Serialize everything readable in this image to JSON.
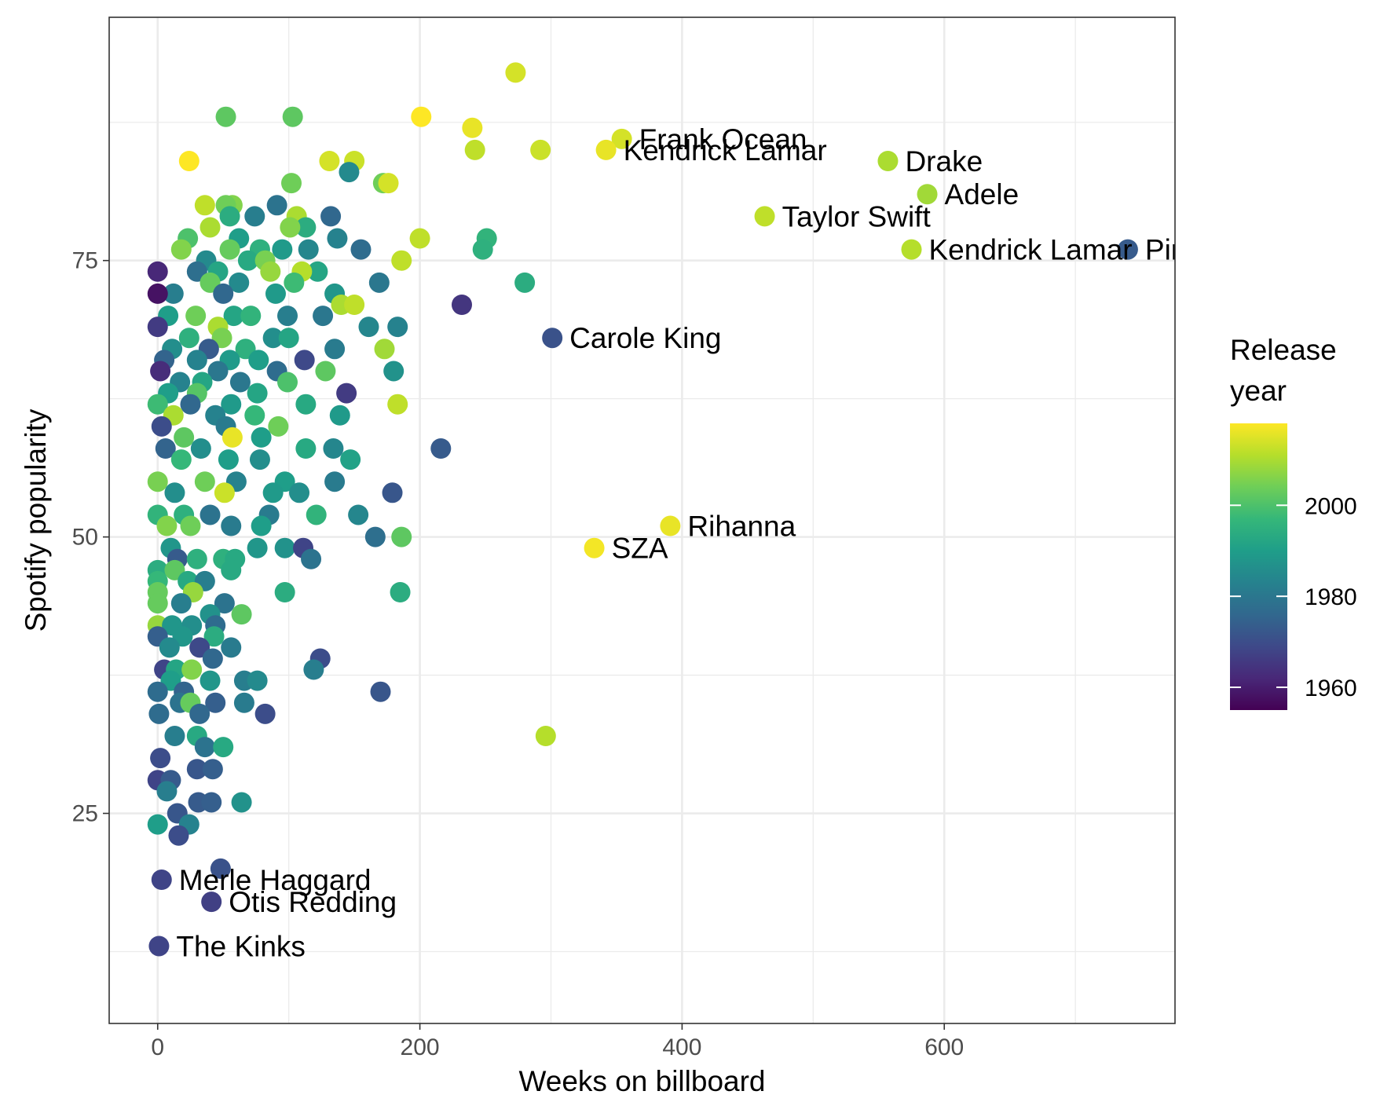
{
  "chart_data": {
    "type": "scatter",
    "title": "",
    "xlabel": "Weeks on billboard",
    "ylabel": "Spotify popularity",
    "xlim": [
      -37,
      776
    ],
    "ylim": [
      6,
      97
    ],
    "x_ticks": [
      0,
      200,
      400,
      600
    ],
    "y_ticks": [
      25,
      50,
      75
    ],
    "grid": true,
    "color_scale": {
      "name": "viridis",
      "title": "Release year",
      "title_lines": [
        "Release",
        "year"
      ],
      "range": [
        1955,
        2018
      ],
      "ticks": [
        1960,
        1980,
        2000
      ],
      "colors": [
        "#440154",
        "#482878",
        "#3e4989",
        "#31688e",
        "#26828e",
        "#1f9e89",
        "#35b779",
        "#6ece58",
        "#b5de2b",
        "#fde725"
      ]
    },
    "legend_position": "right",
    "labeled_points": [
      {
        "label": "Frank Ocean",
        "x": 354,
        "y": 86,
        "year": 2014
      },
      {
        "label": "Kendrick Lamar",
        "x": 342,
        "y": 85,
        "year": 2016
      },
      {
        "label": "Drake",
        "x": 557,
        "y": 84,
        "year": 2010
      },
      {
        "label": "Adele",
        "x": 587,
        "y": 81,
        "year": 2009
      },
      {
        "label": "Taylor Swift",
        "x": 463,
        "y": 79,
        "year": 2012
      },
      {
        "label": "Kendrick Lamar",
        "x": 575,
        "y": 76,
        "year": 2011
      },
      {
        "label": "Pink Floyd",
        "x": 740,
        "y": 76,
        "year": 1973
      },
      {
        "label": "Carole King",
        "x": 301,
        "y": 68,
        "year": 1971
      },
      {
        "label": "Rihanna",
        "x": 391,
        "y": 51,
        "year": 2016
      },
      {
        "label": "SZA",
        "x": 333,
        "y": 49,
        "year": 2017
      },
      {
        "label": "Merle Haggard",
        "x": 3,
        "y": 19,
        "year": 1968
      },
      {
        "label": "Otis Redding",
        "x": 41,
        "y": 17,
        "year": 1967
      },
      {
        "label": "The Kinks",
        "x": 1,
        "y": 13,
        "year": 1968
      }
    ],
    "points": [
      [
        273,
        92,
        2014
      ],
      [
        201,
        88,
        2018
      ],
      [
        52,
        88,
        2002
      ],
      [
        103,
        88,
        2002
      ],
      [
        240,
        87,
        2016
      ],
      [
        242,
        85,
        2012
      ],
      [
        292,
        85,
        2013
      ],
      [
        24,
        84,
        2018
      ],
      [
        131,
        84,
        2014
      ],
      [
        150,
        84,
        2013
      ],
      [
        146,
        83,
        1985
      ],
      [
        172,
        82,
        2004
      ],
      [
        176,
        82,
        2014
      ],
      [
        102,
        82,
        2004
      ],
      [
        36,
        80,
        2012
      ],
      [
        57,
        80,
        2006
      ],
      [
        52,
        80,
        2004
      ],
      [
        91,
        80,
        1979
      ],
      [
        74,
        79,
        1982
      ],
      [
        55,
        79,
        1994
      ],
      [
        106,
        79,
        2010
      ],
      [
        132,
        79,
        1976
      ],
      [
        40,
        78,
        2010
      ],
      [
        113,
        78,
        1994
      ],
      [
        101,
        78,
        2006
      ],
      [
        23,
        77,
        2000
      ],
      [
        62,
        77,
        1990
      ],
      [
        137,
        77,
        1983
      ],
      [
        251,
        77,
        1996
      ],
      [
        200,
        77,
        2012
      ],
      [
        18,
        76,
        2006
      ],
      [
        55,
        76,
        2003
      ],
      [
        78,
        76,
        1995
      ],
      [
        95,
        76,
        1989
      ],
      [
        155,
        76,
        1977
      ],
      [
        248,
        76,
        1995
      ],
      [
        115,
        76,
        1984
      ],
      [
        37,
        75,
        1985
      ],
      [
        69,
        75,
        1993
      ],
      [
        82,
        75,
        2005
      ],
      [
        186,
        75,
        2012
      ],
      [
        122,
        74,
        1992
      ],
      [
        30,
        74,
        1978
      ],
      [
        46,
        74,
        1992
      ],
      [
        86,
        74,
        2008
      ],
      [
        110,
        74,
        2011
      ],
      [
        0,
        74,
        1962
      ],
      [
        40,
        73,
        2003
      ],
      [
        62,
        73,
        1985
      ],
      [
        104,
        73,
        1998
      ],
      [
        169,
        73,
        1980
      ],
      [
        280,
        73,
        1994
      ],
      [
        12,
        72,
        1982
      ],
      [
        50,
        72,
        1976
      ],
      [
        90,
        72,
        1989
      ],
      [
        135,
        72,
        1988
      ],
      [
        0,
        72,
        1958
      ],
      [
        140,
        71,
        2010
      ],
      [
        150,
        71,
        2012
      ],
      [
        232,
        71,
        1965
      ],
      [
        8,
        70,
        1990
      ],
      [
        29,
        70,
        2004
      ],
      [
        58,
        70,
        1992
      ],
      [
        71,
        70,
        1996
      ],
      [
        99,
        70,
        1982
      ],
      [
        126,
        70,
        1980
      ],
      [
        0,
        69,
        1966
      ],
      [
        46,
        69,
        2010
      ],
      [
        161,
        69,
        1984
      ],
      [
        183,
        69,
        1983
      ],
      [
        24,
        68,
        1995
      ],
      [
        49,
        68,
        2005
      ],
      [
        88,
        68,
        1986
      ],
      [
        100,
        68,
        1992
      ],
      [
        11,
        67,
        1986
      ],
      [
        39,
        67,
        1973
      ],
      [
        67,
        67,
        1995
      ],
      [
        135,
        67,
        1981
      ],
      [
        173,
        67,
        2009
      ],
      [
        5,
        66,
        1975
      ],
      [
        30,
        66,
        1983
      ],
      [
        55,
        66,
        1989
      ],
      [
        77,
        66,
        1990
      ],
      [
        112,
        66,
        1969
      ],
      [
        2,
        65,
        1963
      ],
      [
        46,
        65,
        1980
      ],
      [
        91,
        65,
        1977
      ],
      [
        128,
        65,
        2002
      ],
      [
        180,
        65,
        1987
      ],
      [
        17,
        64,
        1983
      ],
      [
        34,
        64,
        1992
      ],
      [
        63,
        64,
        1980
      ],
      [
        99,
        64,
        2000
      ],
      [
        8,
        63,
        1990
      ],
      [
        30,
        63,
        2001
      ],
      [
        76,
        63,
        1992
      ],
      [
        144,
        63,
        1966
      ],
      [
        0,
        62,
        1998
      ],
      [
        25,
        62,
        1976
      ],
      [
        56,
        62,
        1989
      ],
      [
        113,
        62,
        1993
      ],
      [
        183,
        62,
        2012
      ],
      [
        12,
        61,
        2010
      ],
      [
        44,
        61,
        1983
      ],
      [
        74,
        61,
        1997
      ],
      [
        139,
        61,
        1989
      ],
      [
        3,
        60,
        1970
      ],
      [
        52,
        60,
        1981
      ],
      [
        92,
        60,
        2004
      ],
      [
        20,
        59,
        2002
      ],
      [
        57,
        59,
        2016
      ],
      [
        79,
        59,
        1990
      ],
      [
        6,
        58,
        1975
      ],
      [
        33,
        58,
        1986
      ],
      [
        113,
        58,
        1993
      ],
      [
        134,
        58,
        1984
      ],
      [
        216,
        58,
        1973
      ],
      [
        18,
        57,
        1997
      ],
      [
        54,
        57,
        1990
      ],
      [
        78,
        57,
        1986
      ],
      [
        147,
        57,
        1991
      ],
      [
        0,
        55,
        2005
      ],
      [
        36,
        55,
        2004
      ],
      [
        60,
        55,
        1983
      ],
      [
        97,
        55,
        1990
      ],
      [
        135,
        55,
        1981
      ],
      [
        13,
        54,
        1986
      ],
      [
        51,
        54,
        2013
      ],
      [
        88,
        54,
        1989
      ],
      [
        108,
        54,
        1986
      ],
      [
        179,
        54,
        1972
      ],
      [
        0,
        52,
        1996
      ],
      [
        20,
        52,
        1995
      ],
      [
        40,
        52,
        1979
      ],
      [
        85,
        52,
        1981
      ],
      [
        121,
        52,
        1996
      ],
      [
        153,
        52,
        1984
      ],
      [
        7,
        51,
        2006
      ],
      [
        25,
        51,
        2004
      ],
      [
        56,
        51,
        1981
      ],
      [
        79,
        51,
        1990
      ],
      [
        166,
        50,
        1978
      ],
      [
        186,
        50,
        2002
      ],
      [
        10,
        49,
        1988
      ],
      [
        76,
        49,
        1988
      ],
      [
        97,
        49,
        1987
      ],
      [
        111,
        49,
        1968
      ],
      [
        15,
        48,
        1973
      ],
      [
        50,
        48,
        1995
      ],
      [
        59,
        48,
        1993
      ],
      [
        117,
        48,
        1979
      ],
      [
        30,
        48,
        1995
      ],
      [
        0,
        47,
        1994
      ],
      [
        13,
        47,
        2002
      ],
      [
        56,
        47,
        1993
      ],
      [
        0,
        46,
        1997
      ],
      [
        23,
        46,
        1993
      ],
      [
        36,
        46,
        1982
      ],
      [
        0,
        45,
        2003
      ],
      [
        27,
        45,
        2008
      ],
      [
        97,
        45,
        1994
      ],
      [
        185,
        45,
        1994
      ],
      [
        0,
        44,
        2003
      ],
      [
        18,
        44,
        1982
      ],
      [
        51,
        44,
        1979
      ],
      [
        40,
        43,
        1987
      ],
      [
        64,
        43,
        2002
      ],
      [
        0,
        42,
        2008
      ],
      [
        11,
        42,
        1988
      ],
      [
        26,
        42,
        1986
      ],
      [
        44,
        42,
        1977
      ],
      [
        0,
        41,
        1974
      ],
      [
        19,
        41,
        1988
      ],
      [
        43,
        41,
        1994
      ],
      [
        9,
        40,
        1985
      ],
      [
        32,
        40,
        1969
      ],
      [
        56,
        40,
        1981
      ],
      [
        42,
        39,
        1976
      ],
      [
        124,
        39,
        1970
      ],
      [
        5,
        38,
        1968
      ],
      [
        14,
        38,
        1992
      ],
      [
        26,
        38,
        2006
      ],
      [
        119,
        38,
        1982
      ],
      [
        10,
        37,
        1990
      ],
      [
        40,
        37,
        1988
      ],
      [
        66,
        37,
        1982
      ],
      [
        76,
        37,
        1985
      ],
      [
        0,
        36,
        1977
      ],
      [
        20,
        36,
        1975
      ],
      [
        170,
        36,
        1972
      ],
      [
        17,
        35,
        1979
      ],
      [
        25,
        35,
        2003
      ],
      [
        44,
        35,
        1974
      ],
      [
        66,
        35,
        1981
      ],
      [
        1,
        34,
        1977
      ],
      [
        32,
        34,
        1976
      ],
      [
        82,
        34,
        1970
      ],
      [
        296,
        32,
        2011
      ],
      [
        13,
        32,
        1982
      ],
      [
        30,
        32,
        1993
      ],
      [
        36,
        31,
        1979
      ],
      [
        50,
        31,
        1993
      ],
      [
        2,
        30,
        1970
      ],
      [
        30,
        29,
        1972
      ],
      [
        42,
        29,
        1974
      ],
      [
        0,
        28,
        1968
      ],
      [
        10,
        28,
        1973
      ],
      [
        7,
        27,
        1982
      ],
      [
        31,
        26,
        1973
      ],
      [
        41,
        26,
        1974
      ],
      [
        64,
        26,
        1987
      ],
      [
        15,
        25,
        1972
      ],
      [
        0,
        24,
        1990
      ],
      [
        24,
        24,
        1983
      ],
      [
        16,
        23,
        1970
      ],
      [
        48,
        20,
        1971
      ]
    ]
  }
}
